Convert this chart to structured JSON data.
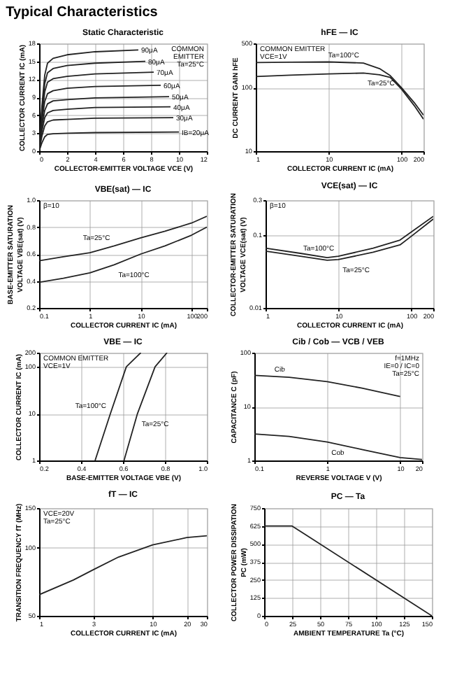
{
  "chart_data": [
    {
      "type": "other",
      "title": "Typical Characteristics"
    },
    {
      "type": "line",
      "title": "Static Characteristic",
      "xlabel": "COLLECTOR-EMITTER VOLTAGE  VCE  (V)",
      "ylabel": "COLLECTOR CURRENT  IC  (mA)",
      "xlim": [
        0,
        12
      ],
      "xticks": [
        0,
        2,
        4,
        6,
        8,
        10,
        12
      ],
      "ylim": [
        0,
        18
      ],
      "yticks": [
        0,
        3,
        6,
        9,
        12,
        15,
        18
      ],
      "grid": true,
      "annotations": [
        "COMMON",
        "EMITTER",
        "Ta=25°C"
      ],
      "series": [
        {
          "name": "90μA",
          "color": "#222222",
          "x": [
            0,
            0.2,
            0.4,
            0.6,
            1,
            2,
            4,
            7.1
          ],
          "values": [
            0,
            7.6,
            12.7,
            14.7,
            15.5,
            16.1,
            16.6,
            16.9
          ]
        },
        {
          "name": "80μA",
          "color": "#222222",
          "x": [
            0,
            0.2,
            0.4,
            0.6,
            1,
            2,
            4,
            7.6
          ],
          "values": [
            0,
            6.8,
            11.3,
            13.1,
            13.8,
            14.3,
            14.7,
            15.0
          ]
        },
        {
          "name": "70μA",
          "color": "#222222",
          "x": [
            0,
            0.2,
            0.4,
            0.6,
            1,
            2,
            4,
            8.2
          ],
          "values": [
            0,
            5.9,
            9.9,
            11.5,
            12.1,
            12.5,
            12.9,
            13.2
          ]
        },
        {
          "name": "60μA",
          "color": "#222222",
          "x": [
            0,
            0.2,
            0.4,
            0.6,
            1,
            2,
            4,
            8.7
          ],
          "values": [
            0,
            5.0,
            8.3,
            9.6,
            10.1,
            10.5,
            10.8,
            11.0
          ]
        },
        {
          "name": "50μA",
          "color": "#222222",
          "x": [
            0,
            0.2,
            0.4,
            0.6,
            1,
            2,
            4,
            9.3
          ],
          "values": [
            0,
            4.1,
            6.8,
            7.9,
            8.4,
            8.6,
            8.9,
            9.1
          ]
        },
        {
          "name": "40μA",
          "color": "#222222",
          "x": [
            0,
            0.2,
            0.4,
            0.6,
            1,
            2,
            4,
            9.4
          ],
          "values": [
            0,
            3.3,
            5.6,
            6.4,
            6.8,
            7.0,
            7.3,
            7.4
          ]
        },
        {
          "name": "30μA",
          "color": "#222222",
          "x": [
            0,
            0.2,
            0.4,
            0.6,
            1,
            2,
            4,
            9.6
          ],
          "values": [
            0,
            2.5,
            4.2,
            4.9,
            5.2,
            5.3,
            5.5,
            5.6
          ]
        },
        {
          "name": "IB=20μA",
          "color": "#222222",
          "x": [
            0,
            0.2,
            0.4,
            0.6,
            1,
            2,
            4,
            10
          ],
          "values": [
            0,
            1.4,
            2.4,
            2.8,
            2.9,
            3.0,
            3.1,
            3.2
          ]
        }
      ]
    },
    {
      "type": "line",
      "title": "hFE — IC",
      "xlabel": "COLLECTOR CURRENT  IC  (mA)",
      "ylabel": "DC CURRENT GAIN  hFE",
      "log": "xy",
      "xlim": [
        1,
        200
      ],
      "xticks": [
        1,
        10,
        100,
        200
      ],
      "ylim": [
        10,
        500
      ],
      "yticks": [
        10,
        100,
        500
      ],
      "grid": true,
      "annotations": [
        "COMMON EMITTER",
        "VCE=1V"
      ],
      "x": [
        1,
        3,
        10,
        30,
        50,
        70,
        100,
        150,
        200
      ],
      "series": [
        {
          "name": "Ta=100°C",
          "color": "#222222",
          "values": [
            250,
            253,
            255,
            245,
            200,
            155,
            100,
            58,
            37
          ]
        },
        {
          "name": "Ta=25°C",
          "color": "#222222",
          "values": [
            150,
            158,
            165,
            170,
            160,
            145,
            95,
            52,
            32
          ]
        }
      ]
    },
    {
      "type": "line",
      "title": "VBE(sat) — IC",
      "xlabel": "COLLECTOR CURRENT  IC  (mA)",
      "ylabel": "BASE-EMITTER SATURATION\nVOLTAGE  VBE(sat)  (V)",
      "log": "x",
      "xlim": [
        0.1,
        200
      ],
      "xticks": [
        0.1,
        1,
        10,
        100,
        200
      ],
      "ylim": [
        0.2,
        1.0
      ],
      "yticks": [
        0.2,
        0.4,
        0.6,
        0.8,
        {
          "value": 1.0,
          "label": "1.0"
        }
      ],
      "grid": true,
      "annotations": [
        "β=10"
      ],
      "x": [
        0.1,
        0.3,
        1,
        3,
        10,
        30,
        100,
        200
      ],
      "series": [
        {
          "name": "Ta=25°C",
          "color": "#222222",
          "values": [
            0.55,
            0.58,
            0.61,
            0.66,
            0.72,
            0.77,
            0.83,
            0.88
          ]
        },
        {
          "name": "Ta=100°C",
          "color": "#222222",
          "values": [
            0.39,
            0.42,
            0.46,
            0.52,
            0.6,
            0.66,
            0.74,
            0.8
          ]
        }
      ]
    },
    {
      "type": "line",
      "title": "VCE(sat) — IC",
      "xlabel": "COLLECTOR CURRENT  IC  (mA)",
      "ylabel": "COLLECTOR-EMITTER SATURATION\nVOLTAGE  VCE(sat)  (V)",
      "log": "xy",
      "xlim": [
        1,
        200
      ],
      "xticks": [
        1,
        10,
        100,
        200
      ],
      "ylim": [
        0.01,
        0.3
      ],
      "yticks": [
        0.01,
        0.1,
        0.3
      ],
      "grid": true,
      "annotations": [
        "β=10"
      ],
      "x": [
        1,
        3,
        7,
        10,
        30,
        70,
        100,
        200
      ],
      "series": [
        {
          "name": "Ta=100°C",
          "color": "#222222",
          "values": [
            0.066,
            0.056,
            0.049,
            0.051,
            0.066,
            0.085,
            0.11,
            0.18
          ]
        },
        {
          "name": "Ta=25°C",
          "color": "#222222",
          "values": [
            0.06,
            0.051,
            0.045,
            0.046,
            0.058,
            0.073,
            0.096,
            0.165
          ]
        }
      ]
    },
    {
      "type": "line",
      "title": "VBE — IC",
      "xlabel": "BASE-EMITTER VOLTAGE  VBE (V)",
      "ylabel": "COLLECTOR CURRENT  IC  (mA)",
      "log": "y",
      "xlim": [
        0.2,
        1.0
      ],
      "xticks": [
        0.2,
        0.4,
        0.6,
        0.8,
        {
          "value": 1.0,
          "label": "1.0"
        }
      ],
      "ylim": [
        1,
        200
      ],
      "yticks": [
        1,
        10,
        100,
        200
      ],
      "grid": true,
      "annotations": [
        "COMMON EMITTER",
        "VCE=1V"
      ],
      "series": [
        {
          "name": "Ta=100°C",
          "color": "#222222",
          "x": [
            0.467,
            0.54,
            0.616,
            0.685
          ],
          "values": [
            1,
            10,
            100,
            200
          ]
        },
        {
          "name": "Ta=25°C",
          "color": "#222222",
          "x": [
            0.605,
            0.669,
            0.753,
            0.81
          ],
          "values": [
            1,
            10,
            100,
            200
          ]
        }
      ]
    },
    {
      "type": "line",
      "title": "Cib / Cob — VCB / VEB",
      "xlabel": "REVERSE  VOLTAGE  V  (V)",
      "ylabel": "CAPACITANCE  C  (pF)",
      "log": "xy",
      "xlim": [
        0.1,
        20
      ],
      "xticks": [
        0.1,
        1,
        10,
        20
      ],
      "ylim": [
        1,
        100
      ],
      "yticks": [
        1,
        10,
        100
      ],
      "grid": true,
      "annotations": [
        "f=1MHz",
        "IE=0 / IC=0",
        "Ta=25°C"
      ],
      "series": [
        {
          "name": "Cib",
          "color": "#222222",
          "x": [
            0.1,
            0.3,
            1,
            3,
            10
          ],
          "values": [
            38,
            35,
            29,
            22,
            15.4
          ]
        },
        {
          "name": "Cob",
          "color": "#222222",
          "x": [
            0.1,
            0.3,
            1,
            3,
            10,
            20
          ],
          "values": [
            3.1,
            2.8,
            2.2,
            1.6,
            1.13,
            1.04
          ]
        }
      ]
    },
    {
      "type": "line",
      "title": "fT — IC",
      "xlabel": "COLLECTOR CURRENT  IC  (mA)",
      "ylabel": "TRANSITION FREQUENCY  fT  (MHz)",
      "log": "xy",
      "xlim": [
        1,
        30
      ],
      "xticks": [
        1,
        3,
        10,
        20,
        30
      ],
      "ylim": [
        50,
        150
      ],
      "yticks": [
        50,
        100,
        150
      ],
      "grid": true,
      "annotations": [
        "VCE=20V",
        "Ta=25°C"
      ],
      "x": [
        1,
        2,
        3,
        5,
        10,
        20,
        30
      ],
      "series": [
        {
          "color": "#222222",
          "values": [
            62,
            72,
            80,
            91,
            103,
            111,
            113
          ]
        }
      ]
    },
    {
      "type": "line",
      "title": "PC — Ta",
      "xlabel": "AMBIENT TEMPERATURE  Ta  (°C)",
      "ylabel": "COLLECTOR POWER DISSIPATION\nPC  (mW)",
      "xlim": [
        0,
        150
      ],
      "xticks": [
        0,
        25,
        50,
        75,
        100,
        125,
        150
      ],
      "ylim": [
        0,
        750
      ],
      "yticks": [
        0,
        125,
        250,
        375,
        500,
        625,
        750
      ],
      "grid": true,
      "x": [
        0,
        25,
        150
      ],
      "series": [
        {
          "color": "#222222",
          "values": [
            625,
            625,
            0
          ]
        }
      ]
    }
  ]
}
